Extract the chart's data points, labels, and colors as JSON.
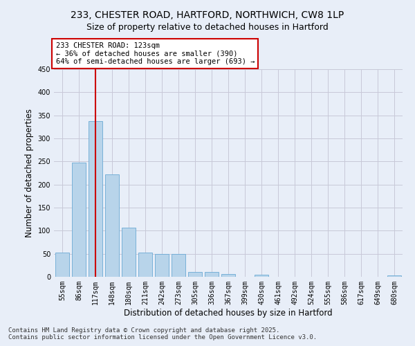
{
  "title_line1": "233, CHESTER ROAD, HARTFORD, NORTHWICH, CW8 1LP",
  "title_line2": "Size of property relative to detached houses in Hartford",
  "xlabel": "Distribution of detached houses by size in Hartford",
  "ylabel": "Number of detached properties",
  "categories": [
    "55sqm",
    "86sqm",
    "117sqm",
    "148sqm",
    "180sqm",
    "211sqm",
    "242sqm",
    "273sqm",
    "305sqm",
    "336sqm",
    "367sqm",
    "399sqm",
    "430sqm",
    "461sqm",
    "492sqm",
    "524sqm",
    "555sqm",
    "586sqm",
    "617sqm",
    "649sqm",
    "680sqm"
  ],
  "values": [
    53,
    247,
    337,
    222,
    106,
    53,
    50,
    49,
    10,
    10,
    6,
    0,
    4,
    0,
    0,
    0,
    0,
    0,
    0,
    0,
    3
  ],
  "bar_color": "#b8d4ea",
  "bar_edge_color": "#6aaad4",
  "vline_x": 2,
  "vline_color": "#cc0000",
  "annotation_text": "233 CHESTER ROAD: 123sqm\n← 36% of detached houses are smaller (390)\n64% of semi-detached houses are larger (693) →",
  "annotation_box_facecolor": "#ffffff",
  "annotation_box_edgecolor": "#cc0000",
  "annotation_text_color": "#000000",
  "ylim": [
    0,
    450
  ],
  "yticks": [
    0,
    50,
    100,
    150,
    200,
    250,
    300,
    350,
    400,
    450
  ],
  "background_color": "#e8eef8",
  "grid_color": "#c8c8d8",
  "footer_line1": "Contains HM Land Registry data © Crown copyright and database right 2025.",
  "footer_line2": "Contains public sector information licensed under the Open Government Licence v3.0.",
  "title_fontsize": 10,
  "subtitle_fontsize": 9,
  "axis_label_fontsize": 8.5,
  "tick_fontsize": 7,
  "annotation_fontsize": 7.5,
  "footer_fontsize": 6.5
}
